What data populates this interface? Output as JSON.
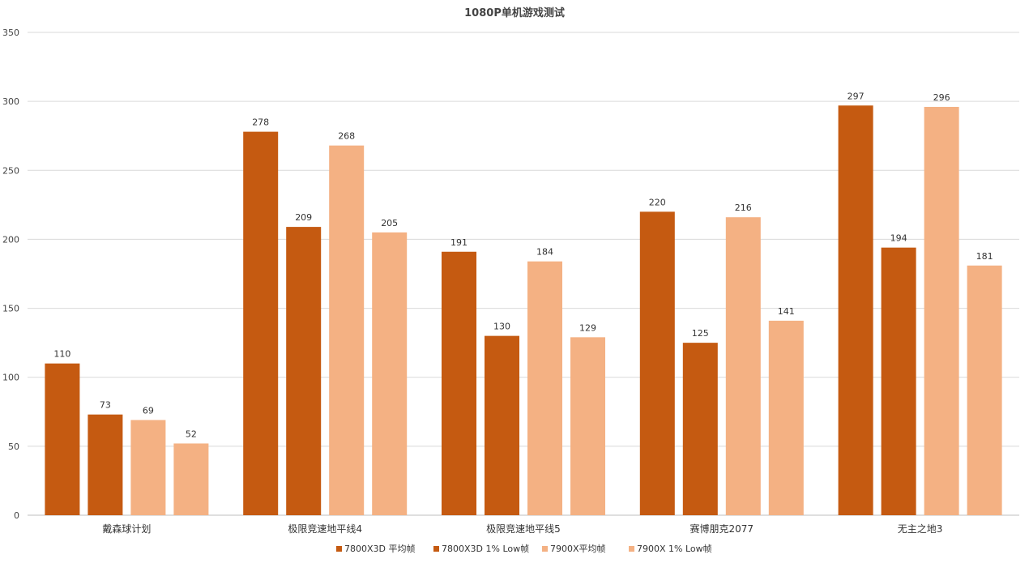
{
  "chart_data": {
    "type": "bar",
    "title": "1080P单机游戏测试",
    "xlabel": "",
    "ylabel": "",
    "ylim": [
      0,
      350
    ],
    "yticks": [
      0,
      50,
      100,
      150,
      200,
      250,
      300,
      350
    ],
    "grid": true,
    "legend_position": "bottom",
    "categories": [
      "戴森球计划",
      "极限竞速地平线4",
      "极限竞速地平线5",
      "赛博朋克2077",
      "无主之地3"
    ],
    "series": [
      {
        "name": "7800X3D 平均帧",
        "color": "#C55A11",
        "values": [
          110,
          278,
          191,
          220,
          297
        ]
      },
      {
        "name": "7800X3D 1% Low帧",
        "color": "#C55A11",
        "values": [
          73,
          209,
          130,
          125,
          194
        ]
      },
      {
        "name": "7900X平均帧",
        "color": "#F4B183",
        "values": [
          69,
          268,
          184,
          216,
          296
        ]
      },
      {
        "name": "7900X 1% Low帧",
        "color": "#F4B183",
        "values": [
          52,
          205,
          129,
          141,
          181
        ]
      }
    ]
  }
}
